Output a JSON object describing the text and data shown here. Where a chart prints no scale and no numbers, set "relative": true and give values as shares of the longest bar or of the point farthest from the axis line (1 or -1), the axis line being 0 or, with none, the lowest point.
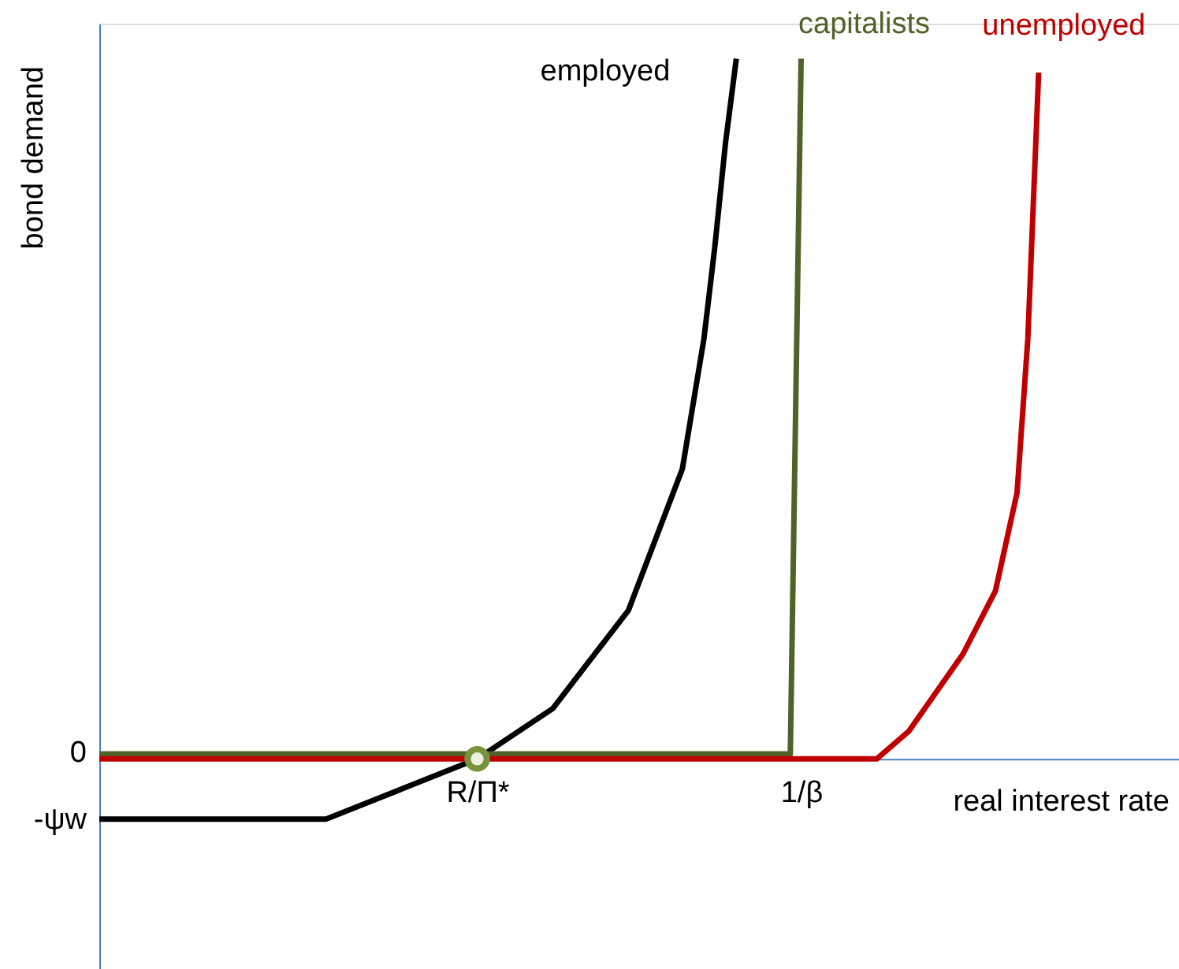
{
  "chart_data": {
    "type": "line",
    "relative": true,
    "xlabel": "real interest rate",
    "ylabel": "bond demand",
    "grid": false,
    "legend": false,
    "marker": "none",
    "line_style": "solid",
    "annotations": [
      "0",
      "-ψw"
    ],
    "categories": [
      null,
      null,
      null,
      null,
      null,
      null,
      null,
      null,
      null,
      null,
      null,
      null,
      null,
      null,
      null,
      null,
      null,
      null,
      null,
      null,
      null,
      null,
      null,
      null,
      null,
      null,
      null,
      null,
      null,
      null,
      null,
      null,
      null,
      null,
      null,
      "R/Π*",
      null,
      null,
      null,
      null,
      null,
      null,
      null,
      null,
      null,
      null,
      null,
      null,
      null,
      null,
      null,
      null,
      null,
      null,
      null,
      null,
      null,
      null,
      null,
      null,
      null,
      null,
      null,
      null,
      null,
      "1/β",
      null,
      null,
      null,
      null,
      null,
      null,
      null,
      null,
      null,
      null,
      null,
      null,
      null,
      null,
      null,
      null,
      null,
      null,
      null,
      null,
      null,
      null,
      null,
      null,
      null,
      null,
      null,
      null,
      null,
      null,
      null,
      null,
      null,
      null,
      null
    ],
    "series": [
      {
        "name": "employed",
        "color": "#000000",
        "values": [
          -0.086,
          null,
          null,
          null,
          null,
          null,
          null,
          null,
          null,
          null,
          null,
          null,
          null,
          null,
          null,
          null,
          null,
          null,
          null,
          null,
          null,
          -0.086,
          null,
          null,
          null,
          null,
          null,
          null,
          -0.043,
          null,
          null,
          null,
          null,
          null,
          null,
          0,
          null,
          null,
          null,
          null,
          null,
          null,
          0.072,
          null,
          null,
          null,
          null,
          null,
          null,
          0.212,
          null,
          null,
          null,
          null,
          0.414,
          null,
          0.6,
          0.73,
          0.88,
          1,
          null,
          null,
          null,
          null,
          null,
          null,
          null,
          null,
          null,
          null,
          null,
          null,
          null,
          null,
          null,
          null,
          null,
          null,
          null,
          null,
          null,
          null,
          null,
          null,
          null,
          null,
          null,
          null,
          null,
          null,
          null,
          null,
          null,
          null,
          null,
          null,
          null,
          null,
          null,
          null,
          null
        ]
      },
      {
        "name": "capitalists",
        "color": "#4f6228",
        "values": [
          0.007,
          null,
          null,
          null,
          null,
          null,
          null,
          null,
          null,
          null,
          null,
          null,
          null,
          null,
          null,
          null,
          null,
          null,
          null,
          null,
          null,
          null,
          null,
          null,
          null,
          null,
          null,
          null,
          null,
          null,
          null,
          null,
          null,
          null,
          null,
          null,
          null,
          null,
          null,
          null,
          null,
          null,
          null,
          null,
          null,
          null,
          null,
          null,
          null,
          null,
          null,
          null,
          null,
          null,
          null,
          null,
          null,
          null,
          null,
          null,
          null,
          null,
          null,
          null,
          0.007,
          1,
          null,
          null,
          null,
          null,
          null,
          null,
          null,
          null,
          null,
          null,
          null,
          null,
          null,
          null,
          null,
          null,
          null,
          null,
          null,
          null,
          null,
          null,
          null,
          null,
          null,
          null,
          null,
          null,
          null,
          null,
          null,
          null,
          null,
          null,
          null
        ]
      },
      {
        "name": "unemployed",
        "color": "#c00000",
        "values": [
          0,
          null,
          null,
          null,
          null,
          null,
          null,
          null,
          null,
          null,
          null,
          null,
          null,
          null,
          null,
          null,
          null,
          null,
          null,
          null,
          null,
          null,
          null,
          null,
          null,
          null,
          null,
          null,
          null,
          null,
          null,
          null,
          null,
          null,
          null,
          null,
          null,
          null,
          null,
          null,
          null,
          null,
          null,
          null,
          null,
          null,
          null,
          null,
          null,
          null,
          null,
          null,
          null,
          null,
          null,
          null,
          null,
          null,
          null,
          null,
          null,
          null,
          null,
          null,
          null,
          null,
          null,
          null,
          null,
          null,
          null,
          null,
          0,
          null,
          null,
          0.04,
          null,
          null,
          null,
          null,
          0.15,
          null,
          null,
          0.24,
          null,
          0.38,
          0.6,
          0.98,
          null,
          null,
          null,
          null,
          null,
          null,
          null,
          null,
          null,
          null,
          null,
          null,
          null
        ]
      },
      {
        "type": "scatter",
        "marker": "circle",
        "color": "#77933c",
        "values": [
          null,
          null,
          null,
          null,
          null,
          null,
          null,
          null,
          null,
          null,
          null,
          null,
          null,
          null,
          null,
          null,
          null,
          null,
          null,
          null,
          null,
          null,
          null,
          null,
          null,
          null,
          null,
          null,
          null,
          null,
          null,
          null,
          null,
          null,
          null,
          0,
          null,
          null,
          null,
          null,
          null,
          null,
          null,
          null,
          null,
          null,
          null,
          null,
          null,
          null,
          null,
          null,
          null,
          null,
          null,
          null,
          null,
          null,
          null,
          null,
          null,
          null,
          null,
          null,
          null,
          null,
          null,
          null,
          null,
          null,
          null,
          null,
          null,
          null,
          null,
          null,
          null,
          null,
          null,
          null,
          null,
          null,
          null,
          null,
          null,
          null,
          null,
          null,
          null,
          null,
          null,
          null,
          null,
          null,
          null,
          null,
          null,
          null,
          null,
          null,
          null
        ]
      }
    ]
  }
}
